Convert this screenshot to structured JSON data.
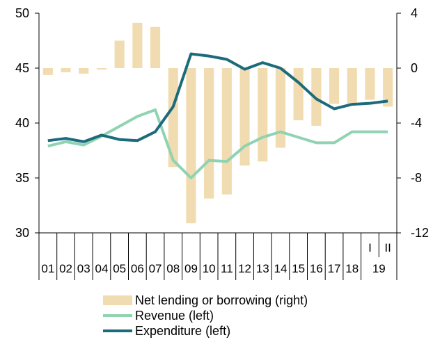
{
  "chart_data": {
    "type": "bar+line",
    "categories": [
      "01",
      "02",
      "03",
      "04",
      "05",
      "06",
      "07",
      "08",
      "09",
      "10",
      "11",
      "12",
      "13",
      "14",
      "15",
      "16",
      "17",
      "18",
      "I",
      "II"
    ],
    "year_group_labels": [
      {
        "label": "19",
        "span": [
          "I",
          "II"
        ]
      }
    ],
    "left_axis": {
      "ylim": [
        30,
        50
      ],
      "ticks": [
        30,
        35,
        40,
        45,
        50
      ],
      "tick_labels": [
        "30",
        "35",
        "40",
        "45",
        "50"
      ]
    },
    "right_axis": {
      "ylim": [
        -12,
        4
      ],
      "ticks": [
        -12,
        -8,
        -4,
        0,
        4
      ],
      "tick_labels": [
        "-12",
        "-8",
        "-4",
        "0",
        "4"
      ]
    },
    "series": [
      {
        "name": "Net lending or borrowing (right)",
        "type": "bar",
        "axis": "right",
        "color": "#f0dcb0",
        "values": [
          -0.5,
          -0.3,
          -0.4,
          -0.1,
          2.0,
          3.3,
          3.0,
          -7.2,
          -11.3,
          -9.5,
          -9.2,
          -7.1,
          -6.8,
          -5.8,
          -3.8,
          -4.2,
          -2.6,
          -2.6,
          -2.3,
          -2.8
        ]
      },
      {
        "name": "Revenue (left)",
        "type": "line",
        "axis": "left",
        "color": "#8fd3b2",
        "values": [
          37.9,
          38.3,
          38.0,
          38.8,
          39.7,
          40.6,
          41.2,
          36.6,
          35.0,
          36.6,
          36.5,
          37.9,
          38.7,
          39.2,
          38.7,
          38.2,
          38.2,
          39.2,
          39.2,
          39.2
        ]
      },
      {
        "name": "Expenditure (left)",
        "type": "line",
        "axis": "left",
        "color": "#1c6b7b",
        "values": [
          38.4,
          38.6,
          38.3,
          38.9,
          38.5,
          38.4,
          39.2,
          41.5,
          46.3,
          46.1,
          45.8,
          44.9,
          45.5,
          45.0,
          43.7,
          42.2,
          41.3,
          41.7,
          41.8,
          42.0
        ]
      }
    ],
    "legend": {
      "placement": "bottom"
    },
    "grid": false
  }
}
